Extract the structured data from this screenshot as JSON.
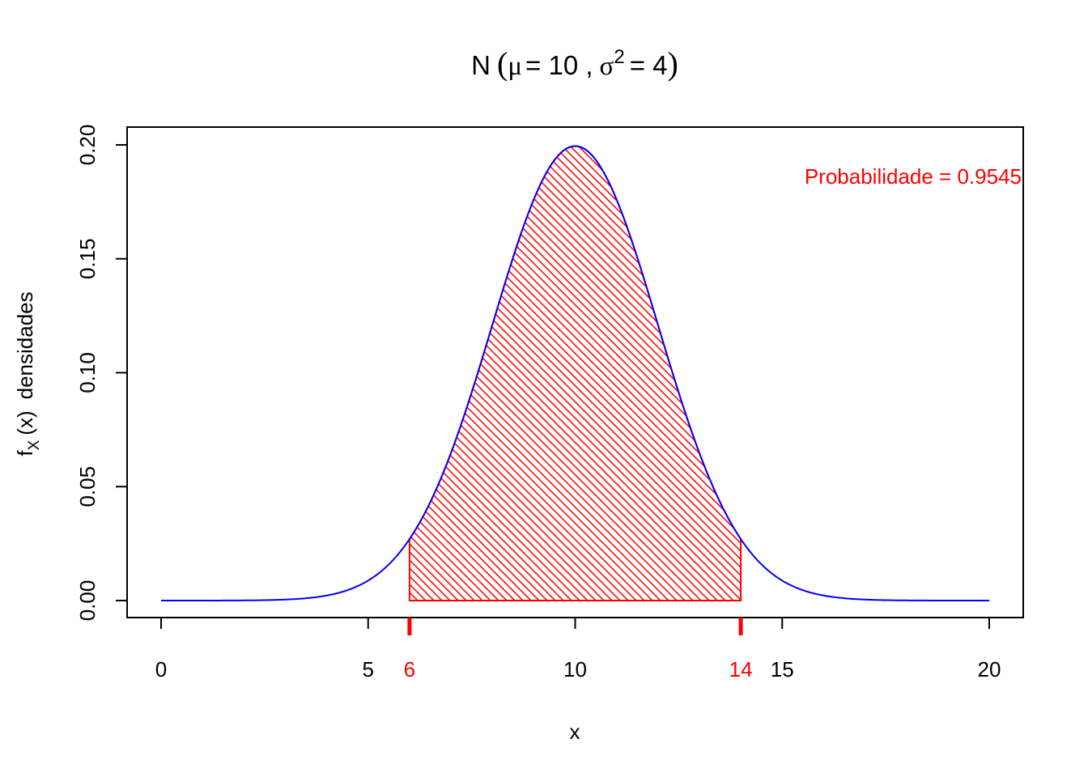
{
  "chart_data": {
    "type": "area",
    "title": {
      "prefix": "N",
      "open_paren": "(",
      "mu_symbol": "μ",
      "mu_eq": "= 10 ,",
      "sigma_symbol": "σ",
      "sigma_sup": "2",
      "sigma_eq": "= 4",
      "close_paren": ")"
    },
    "xlabel": "x",
    "ylabel": {
      "f": "f",
      "sub": "X",
      "arg": "(x)",
      "word": "densidades"
    },
    "distribution": {
      "name": "normal",
      "mean": 10,
      "variance": 4
    },
    "xlim": [
      0,
      20
    ],
    "ylim": [
      0,
      0.2
    ],
    "x_ticks": [
      {
        "value": 0,
        "label": "0"
      },
      {
        "value": 5,
        "label": "5"
      },
      {
        "value": 10,
        "label": "10"
      },
      {
        "value": 15,
        "label": "15"
      },
      {
        "value": 20,
        "label": "20"
      }
    ],
    "y_ticks": [
      {
        "value": 0.0,
        "label": "0.00"
      },
      {
        "value": 0.05,
        "label": "0.05"
      },
      {
        "value": 0.1,
        "label": "0.10"
      },
      {
        "value": 0.15,
        "label": "0.15"
      },
      {
        "value": 0.2,
        "label": "0.20"
      }
    ],
    "shaded_region": {
      "from": 6,
      "to": 14,
      "from_label": "6",
      "to_label": "14",
      "pattern": "hatched"
    },
    "annotation": {
      "text": "Probabilidade = 0.9545",
      "position": "top-right"
    },
    "grid": false,
    "colors": {
      "curve": "#0000ff",
      "shade": "#ff0000",
      "axis": "#000000"
    }
  }
}
